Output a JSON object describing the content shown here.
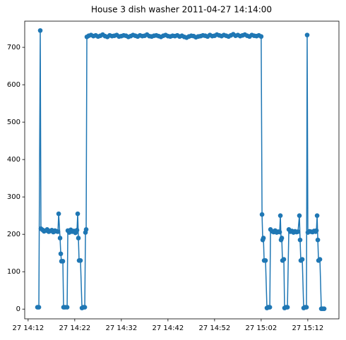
{
  "chart_data": {
    "type": "line",
    "title": "House 3 dish washer 2011-04-27 14:14:00",
    "x": [
      "27 14:14:00",
      "27 14:14:18",
      "27 14:14:36",
      "27 14:14:45",
      "27 14:15:05",
      "27 14:15:25",
      "27 14:15:45",
      "27 14:16:05",
      "27 14:16:25",
      "27 14:16:45",
      "27 14:17:05",
      "27 14:17:25",
      "27 14:17:45",
      "27 14:18:05",
      "27 14:18:24",
      "27 14:18:33",
      "27 14:18:51",
      "27 14:19:00",
      "27 14:19:09",
      "27 14:19:27",
      "27 14:19:36",
      "27 14:19:54",
      "27 14:20:22",
      "27 14:20:31",
      "27 14:20:49",
      "27 14:21:09",
      "27 14:21:29",
      "27 14:21:49",
      "27 14:22:09",
      "27 14:22:29",
      "27 14:22:38",
      "27 14:22:47",
      "27 14:22:56",
      "27 14:23:14",
      "27 14:23:33",
      "27 14:23:51",
      "27 14:24:09",
      "27 14:24:18",
      "27 14:24:27",
      "27 14:24:36",
      "27 14:25:00",
      "27 14:25:30",
      "27 14:26:00",
      "27 14:26:30",
      "27 14:27:00",
      "27 14:27:30",
      "27 14:28:00",
      "27 14:28:30",
      "27 14:29:00",
      "27 14:29:30",
      "27 14:30:00",
      "27 14:30:30",
      "27 14:31:00",
      "27 14:31:30",
      "27 14:32:00",
      "27 14:32:30",
      "27 14:33:00",
      "27 14:33:30",
      "27 14:34:00",
      "27 14:34:30",
      "27 14:35:00",
      "27 14:35:30",
      "27 14:36:00",
      "27 14:36:30",
      "27 14:37:00",
      "27 14:37:30",
      "27 14:38:00",
      "27 14:38:30",
      "27 14:39:00",
      "27 14:39:30",
      "27 14:40:00",
      "27 14:40:30",
      "27 14:41:00",
      "27 14:41:30",
      "27 14:42:00",
      "27 14:42:30",
      "27 14:43:00",
      "27 14:43:30",
      "27 14:44:00",
      "27 14:44:30",
      "27 14:45:00",
      "27 14:45:30",
      "27 14:46:00",
      "27 14:46:30",
      "27 14:47:00",
      "27 14:47:30",
      "27 14:48:00",
      "27 14:48:30",
      "27 14:49:00",
      "27 14:49:30",
      "27 14:50:00",
      "27 14:50:30",
      "27 14:51:00",
      "27 14:51:30",
      "27 14:52:00",
      "27 14:52:30",
      "27 14:53:00",
      "27 14:53:30",
      "27 14:54:00",
      "27 14:54:30",
      "27 14:55:00",
      "27 14:55:30",
      "27 14:56:00",
      "27 14:56:30",
      "27 14:57:00",
      "27 14:57:30",
      "27 14:58:00",
      "27 14:58:30",
      "27 14:59:00",
      "27 14:59:30",
      "27 15:00:00",
      "27 15:00:30",
      "27 15:01:00",
      "27 15:01:30",
      "27 15:02:00",
      "27 15:02:11",
      "27 15:02:20",
      "27 15:02:29",
      "27 15:02:38",
      "27 15:02:56",
      "27 15:03:14",
      "27 15:03:32",
      "27 15:03:51",
      "27 15:04:00",
      "27 15:04:20",
      "27 15:04:40",
      "27 15:05:00",
      "27 15:05:20",
      "27 15:05:40",
      "27 15:05:58",
      "27 15:06:07",
      "27 15:06:16",
      "27 15:06:25",
      "27 15:06:34",
      "27 15:06:52",
      "27 15:07:01",
      "27 15:07:20",
      "27 15:07:38",
      "27 15:07:56",
      "27 15:08:16",
      "27 15:08:36",
      "27 15:08:56",
      "27 15:09:16",
      "27 15:09:36",
      "27 15:09:54",
      "27 15:10:12",
      "27 15:10:21",
      "27 15:10:30",
      "27 15:10:49",
      "27 15:11:07",
      "27 15:11:25",
      "27 15:11:43",
      "27 15:11:52",
      "27 15:12:01",
      "27 15:12:21",
      "27 15:12:41",
      "27 15:13:01",
      "27 15:13:21",
      "27 15:13:41",
      "27 15:13:51",
      "27 15:14:00",
      "27 15:14:09",
      "27 15:14:18",
      "27 15:14:36",
      "27 15:14:54",
      "27 15:15:12",
      "27 15:15:31"
    ],
    "series": [
      {
        "name": "dish washer",
        "color": "#1f77b4",
        "values": [
          5,
          5,
          745,
          215,
          212,
          208,
          210,
          213,
          207,
          209,
          211,
          206,
          210,
          208,
          207,
          255,
          190,
          148,
          128,
          128,
          5,
          5,
          5,
          210,
          205,
          212,
          207,
          209,
          204,
          211,
          255,
          190,
          130,
          130,
          3,
          5,
          5,
          205,
          213,
          728,
          731,
          733,
          730,
          732,
          729,
          731,
          734,
          730,
          728,
          732,
          730,
          731,
          733,
          729,
          730,
          732,
          731,
          728,
          730,
          733,
          731,
          729,
          732,
          730,
          731,
          734,
          730,
          729,
          731,
          732,
          730,
          728,
          731,
          733,
          730,
          729,
          731,
          730,
          732,
          729,
          731,
          728,
          726,
          729,
          731,
          730,
          727,
          729,
          730,
          732,
          731,
          729,
          733,
          730,
          731,
          734,
          732,
          730,
          733,
          731,
          729,
          732,
          735,
          731,
          733,
          730,
          732,
          734,
          731,
          729,
          733,
          731,
          730,
          732,
          729,
          253,
          185,
          190,
          130,
          130,
          3,
          5,
          5,
          213,
          208,
          206,
          210,
          205,
          207,
          206,
          250,
          185,
          190,
          130,
          133,
          3,
          5,
          5,
          213,
          207,
          209,
          205,
          208,
          206,
          207,
          250,
          185,
          130,
          133,
          3,
          5,
          5,
          733,
          205,
          208,
          207,
          206,
          209,
          207,
          210,
          250,
          185,
          130,
          133,
          1,
          1,
          1
        ]
      }
    ],
    "xlim": [
      "27 14:11:16",
      "27 15:18:41"
    ],
    "xticks": [
      "27 14:12",
      "27 14:22",
      "27 14:32",
      "27 14:42",
      "27 14:52",
      "27 15:02",
      "27 15:12"
    ],
    "ylim": [
      -26,
      770
    ],
    "yticks": [
      0,
      100,
      200,
      300,
      400,
      500,
      600,
      700
    ],
    "grid": false
  }
}
